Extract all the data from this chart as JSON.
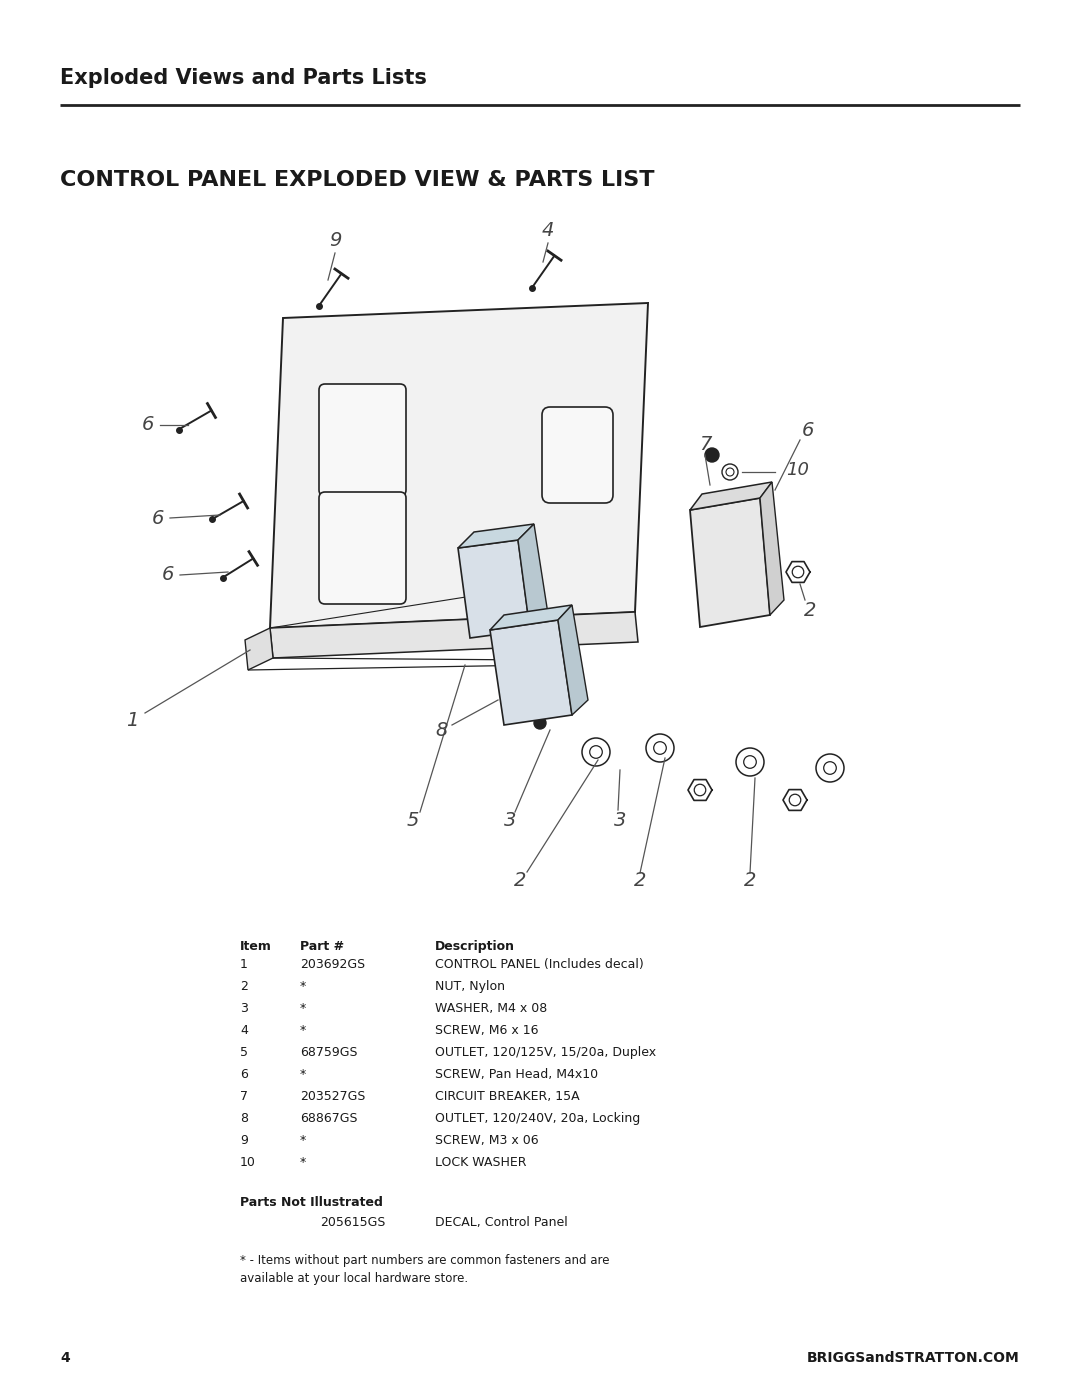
{
  "page_title": "Exploded Views and Parts Lists",
  "section_title": "CONTROL PANEL EXPLODED VIEW & PARTS LIST",
  "bg_color": "#ffffff",
  "line_color": "#222222",
  "text_color": "#1a1a1a",
  "parts": [
    {
      "item": 1,
      "part": "203692GS",
      "description": "CONTROL PANEL (Includes decal)"
    },
    {
      "item": 2,
      "part": "*",
      "description": "NUT, Nylon"
    },
    {
      "item": 3,
      "part": "*",
      "description": "WASHER, M4 x 08"
    },
    {
      "item": 4,
      "part": "*",
      "description": "SCREW, M6 x 16"
    },
    {
      "item": 5,
      "part": "68759GS",
      "description": "OUTLET, 120/125V, 15/20a, Duplex"
    },
    {
      "item": 6,
      "part": "*",
      "description": "SCREW, Pan Head, M4x10"
    },
    {
      "item": 7,
      "part": "203527GS",
      "description": "CIRCUIT BREAKER, 15A"
    },
    {
      "item": 8,
      "part": "68867GS",
      "description": "OUTLET, 120/240V, 20a, Locking"
    },
    {
      "item": 9,
      "part": "*",
      "description": "SCREW, M3 x 06"
    },
    {
      "item": 10,
      "part": "*",
      "description": "LOCK WASHER"
    }
  ],
  "parts_not_illustrated": [
    {
      "part": "205615GS",
      "description": "DECAL, Control Panel"
    }
  ],
  "footnote1": "* - Items without part numbers are common fasteners and are",
  "footnote2": "available at your local hardware store.",
  "page_number": "4",
  "footer_text": "BRIGGSandSTRATTON.COM"
}
